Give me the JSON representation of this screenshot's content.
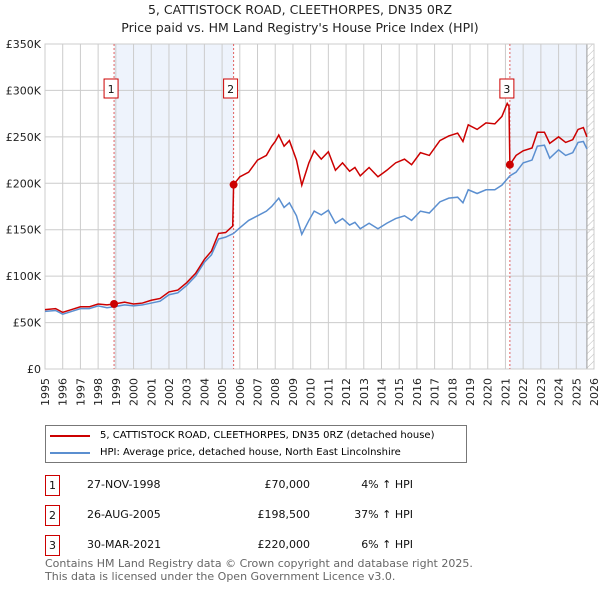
{
  "title": "5, CATTISTOCK ROAD, CLEETHORPES, DN35 0RZ",
  "subtitle": "Price paid vs. HM Land Registry's House Price Index (HPI)",
  "chart_data": {
    "type": "line",
    "title": "5, CATTISTOCK ROAD, CLEETHORPES, DN35 0RZ",
    "xlim": [
      1995,
      2026
    ],
    "ylim": [
      0,
      350000
    ],
    "x_ticks": [
      "1995",
      "1996",
      "1997",
      "1998",
      "1999",
      "2000",
      "2001",
      "2002",
      "2003",
      "2004",
      "2005",
      "2006",
      "2007",
      "2008",
      "2009",
      "2010",
      "2011",
      "2012",
      "2013",
      "2014",
      "2015",
      "2016",
      "2017",
      "2018",
      "2019",
      "2020",
      "2021",
      "2022",
      "2023",
      "2024",
      "2025",
      "2026"
    ],
    "y_ticks": [
      {
        "v": 0,
        "label": "£0"
      },
      {
        "v": 50000,
        "label": "£50K"
      },
      {
        "v": 100000,
        "label": "£100K"
      },
      {
        "v": 150000,
        "label": "£150K"
      },
      {
        "v": 200000,
        "label": "£200K"
      },
      {
        "v": 250000,
        "label": "£250K"
      },
      {
        "v": 300000,
        "label": "£300K"
      },
      {
        "v": 350000,
        "label": "£350K"
      }
    ],
    "grid": true,
    "shaded_periods": [
      [
        1998.9,
        2005.65
      ],
      [
        2021.25,
        2025.6
      ]
    ],
    "hatched_from": 2025.6,
    "series": [
      {
        "name": "5, CATTISTOCK ROAD, CLEETHORPES, DN35 0RZ (detached house)",
        "color": "#cc0000",
        "points": [
          [
            1995,
            64000
          ],
          [
            1995.6,
            65000
          ],
          [
            1996,
            61000
          ],
          [
            1996.5,
            64000
          ],
          [
            1997,
            67000
          ],
          [
            1997.5,
            67000
          ],
          [
            1998,
            70000
          ],
          [
            1998.5,
            69000
          ],
          [
            1998.9,
            70000
          ],
          [
            1999.5,
            72000
          ],
          [
            2000,
            70000
          ],
          [
            2000.5,
            71000
          ],
          [
            2001,
            74000
          ],
          [
            2001.5,
            76000
          ],
          [
            2002,
            83000
          ],
          [
            2002.5,
            85000
          ],
          [
            2003,
            93000
          ],
          [
            2003.5,
            103000
          ],
          [
            2004,
            118000
          ],
          [
            2004.4,
            127000
          ],
          [
            2004.8,
            146000
          ],
          [
            2005.2,
            147000
          ],
          [
            2005.6,
            154000
          ],
          [
            2005.65,
            198500
          ],
          [
            2006,
            207000
          ],
          [
            2006.5,
            212000
          ],
          [
            2007,
            225000
          ],
          [
            2007.5,
            230000
          ],
          [
            2007.8,
            240000
          ],
          [
            2008,
            245000
          ],
          [
            2008.2,
            252000
          ],
          [
            2008.5,
            240000
          ],
          [
            2008.8,
            246000
          ],
          [
            2009.2,
            225000
          ],
          [
            2009.5,
            198000
          ],
          [
            2009.9,
            222000
          ],
          [
            2010.2,
            235000
          ],
          [
            2010.6,
            226000
          ],
          [
            2011,
            234000
          ],
          [
            2011.4,
            214000
          ],
          [
            2011.8,
            222000
          ],
          [
            2012.2,
            213000
          ],
          [
            2012.5,
            217000
          ],
          [
            2012.8,
            208000
          ],
          [
            2013.3,
            217000
          ],
          [
            2013.8,
            207000
          ],
          [
            2014.3,
            214000
          ],
          [
            2014.8,
            222000
          ],
          [
            2015.3,
            226000
          ],
          [
            2015.7,
            220000
          ],
          [
            2016.2,
            233000
          ],
          [
            2016.7,
            230000
          ],
          [
            2017.3,
            246000
          ],
          [
            2017.8,
            251000
          ],
          [
            2018.3,
            254000
          ],
          [
            2018.6,
            245000
          ],
          [
            2018.9,
            263000
          ],
          [
            2019.4,
            258000
          ],
          [
            2019.9,
            265000
          ],
          [
            2020.4,
            264000
          ],
          [
            2020.8,
            272000
          ],
          [
            2021.1,
            286000
          ],
          [
            2021.2,
            283000
          ],
          [
            2021.25,
            220000
          ],
          [
            2021.6,
            230000
          ],
          [
            2022,
            235000
          ],
          [
            2022.5,
            238000
          ],
          [
            2022.8,
            255000
          ],
          [
            2023.2,
            255000
          ],
          [
            2023.5,
            243000
          ],
          [
            2024,
            250000
          ],
          [
            2024.4,
            244000
          ],
          [
            2024.8,
            247000
          ],
          [
            2025.1,
            258000
          ],
          [
            2025.4,
            260000
          ],
          [
            2025.6,
            250000
          ]
        ]
      },
      {
        "name": "HPI: Average price, detached house, North East Lincolnshire",
        "color": "#5b8fd0",
        "points": [
          [
            1995,
            62000
          ],
          [
            1995.6,
            63000
          ],
          [
            1996,
            59000
          ],
          [
            1996.5,
            62000
          ],
          [
            1997,
            65000
          ],
          [
            1997.5,
            65000
          ],
          [
            1998,
            68000
          ],
          [
            1998.5,
            66000
          ],
          [
            1998.9,
            67000
          ],
          [
            1999.5,
            69000
          ],
          [
            2000,
            68000
          ],
          [
            2000.5,
            69000
          ],
          [
            2001,
            71000
          ],
          [
            2001.5,
            73000
          ],
          [
            2002,
            80000
          ],
          [
            2002.5,
            82000
          ],
          [
            2003,
            90000
          ],
          [
            2003.5,
            100000
          ],
          [
            2004,
            115000
          ],
          [
            2004.4,
            123000
          ],
          [
            2004.8,
            140000
          ],
          [
            2005.2,
            142000
          ],
          [
            2005.65,
            146000
          ],
          [
            2006,
            152000
          ],
          [
            2006.5,
            160000
          ],
          [
            2007,
            165000
          ],
          [
            2007.5,
            170000
          ],
          [
            2007.8,
            175000
          ],
          [
            2008.2,
            184000
          ],
          [
            2008.5,
            174000
          ],
          [
            2008.8,
            179000
          ],
          [
            2009.2,
            165000
          ],
          [
            2009.5,
            145000
          ],
          [
            2009.9,
            160000
          ],
          [
            2010.2,
            170000
          ],
          [
            2010.6,
            166000
          ],
          [
            2011,
            171000
          ],
          [
            2011.4,
            157000
          ],
          [
            2011.8,
            162000
          ],
          [
            2012.2,
            155000
          ],
          [
            2012.5,
            158000
          ],
          [
            2012.8,
            151000
          ],
          [
            2013.3,
            157000
          ],
          [
            2013.8,
            151000
          ],
          [
            2014.3,
            157000
          ],
          [
            2014.8,
            162000
          ],
          [
            2015.3,
            165000
          ],
          [
            2015.7,
            160000
          ],
          [
            2016.2,
            170000
          ],
          [
            2016.7,
            168000
          ],
          [
            2017.3,
            180000
          ],
          [
            2017.8,
            184000
          ],
          [
            2018.3,
            185000
          ],
          [
            2018.6,
            179000
          ],
          [
            2018.9,
            193000
          ],
          [
            2019.4,
            189000
          ],
          [
            2019.9,
            193000
          ],
          [
            2020.4,
            193000
          ],
          [
            2020.8,
            198000
          ],
          [
            2021.25,
            208000
          ],
          [
            2021.6,
            212000
          ],
          [
            2022,
            222000
          ],
          [
            2022.5,
            225000
          ],
          [
            2022.8,
            240000
          ],
          [
            2023.2,
            241000
          ],
          [
            2023.5,
            227000
          ],
          [
            2024,
            236000
          ],
          [
            2024.4,
            230000
          ],
          [
            2024.8,
            233000
          ],
          [
            2025.1,
            244000
          ],
          [
            2025.4,
            245000
          ],
          [
            2025.6,
            237000
          ]
        ]
      }
    ],
    "sales": [
      {
        "label": "1",
        "x": 1998.9,
        "y": 70000
      },
      {
        "label": "2",
        "x": 2005.65,
        "y": 198500
      },
      {
        "label": "3",
        "x": 2021.25,
        "y": 220000
      }
    ]
  },
  "legend": {
    "property": "5, CATTISTOCK ROAD, CLEETHORPES, DN35 0RZ (detached house)",
    "hpi": "HPI: Average price, detached house, North East Lincolnshire"
  },
  "sales_table": [
    {
      "num": "1",
      "date": "27-NOV-1998",
      "price": "£70,000",
      "hpi": "4% ↑ HPI"
    },
    {
      "num": "2",
      "date": "26-AUG-2005",
      "price": "£198,500",
      "hpi": "37% ↑ HPI"
    },
    {
      "num": "3",
      "date": "30-MAR-2021",
      "price": "£220,000",
      "hpi": "6% ↑ HPI"
    }
  ],
  "footer": [
    "Contains HM Land Registry data © Crown copyright and database right 2025.",
    "This data is licensed under the Open Government Licence v3.0."
  ]
}
